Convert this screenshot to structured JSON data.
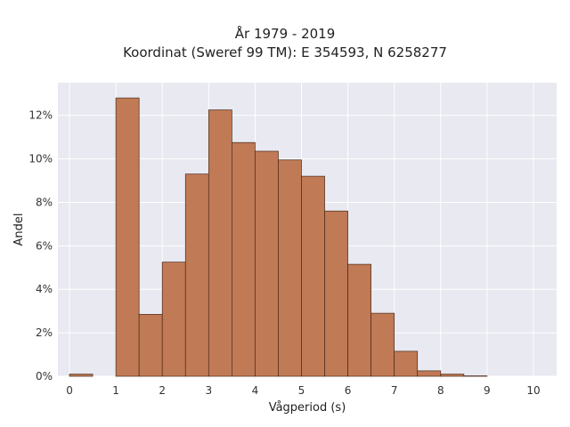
{
  "chart_data": {
    "type": "bar",
    "title": [
      "År 1979 - 2019",
      "Koordinat (Sweref 99 TM): E 354593, N 6258277"
    ],
    "xlabel": "Vågperiod (s)",
    "ylabel": "Andel",
    "x_ticks": [
      "0",
      "1",
      "2",
      "3",
      "4",
      "5",
      "6",
      "7",
      "8",
      "9",
      "10"
    ],
    "y_ticks": [
      "0%",
      "2%",
      "4%",
      "6%",
      "8%",
      "10%",
      "12%"
    ],
    "xlim": [
      -0.25,
      10.5
    ],
    "ylim": [
      0,
      13.5
    ],
    "bin_width": 0.5,
    "bins": [
      {
        "x0": 0.0,
        "value": 0.1
      },
      {
        "x0": 0.5,
        "value": 0.0
      },
      {
        "x0": 1.0,
        "value": 12.8
      },
      {
        "x0": 1.5,
        "value": 2.85
      },
      {
        "x0": 2.0,
        "value": 5.25
      },
      {
        "x0": 2.5,
        "value": 9.3
      },
      {
        "x0": 3.0,
        "value": 12.25
      },
      {
        "x0": 3.5,
        "value": 10.75
      },
      {
        "x0": 4.0,
        "value": 10.35
      },
      {
        "x0": 4.5,
        "value": 9.95
      },
      {
        "x0": 5.0,
        "value": 9.2
      },
      {
        "x0": 5.5,
        "value": 7.6
      },
      {
        "x0": 6.0,
        "value": 5.15
      },
      {
        "x0": 6.5,
        "value": 2.9
      },
      {
        "x0": 7.0,
        "value": 1.15
      },
      {
        "x0": 7.5,
        "value": 0.25
      },
      {
        "x0": 8.0,
        "value": 0.1
      },
      {
        "x0": 8.5,
        "value": 0.02
      },
      {
        "x0": 9.0,
        "value": 0.0
      },
      {
        "x0": 9.5,
        "value": 0.0
      }
    ],
    "grid": true,
    "colors": {
      "bar_fill": "#c07a55",
      "bar_edge": "#4a2a1a",
      "plot_bg": "#e8e9f1",
      "grid": "#ffffff"
    }
  }
}
